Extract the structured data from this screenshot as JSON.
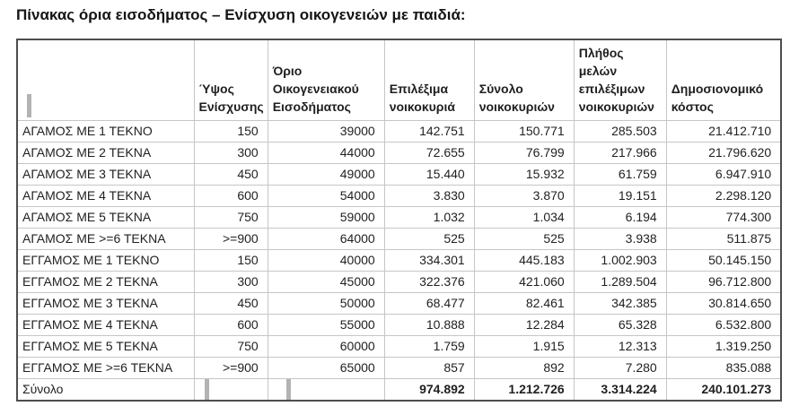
{
  "page": {
    "title": "Πίνακας όρια εισοδήματος – Ενίσχυση οικογενειών με παιδιά:"
  },
  "table": {
    "headers": [
      "",
      "Ύψος Ενίσχυσης",
      "Όριο Οικογενειακού Εισοδήματος",
      "Επιλέξιμα νοικοκυριά",
      "Σύνολο νοικοκυριών",
      "Πλήθος μελών επιλέξιμων νοικοκυριών",
      "Δημοσιονομικό κόστος"
    ],
    "rows": [
      {
        "label": "ΑΓΑΜΟΣ ΜΕ 1 ΤΕΚΝΟ",
        "values": [
          "150",
          "39000",
          "142.751",
          "150.771",
          "285.503",
          "21.412.710"
        ]
      },
      {
        "label": "ΑΓΑΜΟΣ ΜΕ 2 ΤΕΚΝΑ",
        "values": [
          "300",
          "44000",
          "72.655",
          "76.799",
          "217.966",
          "21.796.620"
        ]
      },
      {
        "label": "ΑΓΑΜΟΣ ΜΕ 3 ΤΕΚΝΑ",
        "values": [
          "450",
          "49000",
          "15.440",
          "15.932",
          "61.759",
          "6.947.910"
        ]
      },
      {
        "label": "ΑΓΑΜΟΣ ΜΕ 4 ΤΕΚΝΑ",
        "values": [
          "600",
          "54000",
          "3.830",
          "3.870",
          "19.151",
          "2.298.120"
        ]
      },
      {
        "label": "ΑΓΑΜΟΣ ΜΕ 5 ΤΕΚΝΑ",
        "values": [
          "750",
          "59000",
          "1.032",
          "1.034",
          "6.194",
          "774.300"
        ]
      },
      {
        "label": "ΑΓΑΜΟΣ ΜΕ >=6 ΤΕΚΝΑ",
        "values": [
          ">=900",
          "64000",
          "525",
          "525",
          "3.938",
          "511.875"
        ]
      },
      {
        "label": "ΕΓΓΑΜΟΣ ΜΕ 1 ΤΕΚΝΟ",
        "values": [
          "150",
          "40000",
          "334.301",
          "445.183",
          "1.002.903",
          "50.145.150"
        ]
      },
      {
        "label": "ΕΓΓΑΜΟΣ ΜΕ 2 ΤΕΚΝΑ",
        "values": [
          "300",
          "45000",
          "322.376",
          "421.060",
          "1.289.504",
          "96.712.800"
        ]
      },
      {
        "label": "ΕΓΓΑΜΟΣ ΜΕ 3 ΤΕΚΝΑ",
        "values": [
          "450",
          "50000",
          "68.477",
          "82.461",
          "342.385",
          "30.814.650"
        ]
      },
      {
        "label": "ΕΓΓΑΜΟΣ ΜΕ 4 ΤΕΚΝΑ",
        "values": [
          "600",
          "55000",
          "10.888",
          "12.284",
          "65.328",
          "6.532.800"
        ]
      },
      {
        "label": "ΕΓΓΑΜΟΣ ΜΕ 5 ΤΕΚΝΑ",
        "values": [
          "750",
          "60000",
          "1.759",
          "1.915",
          "12.313",
          "1.319.250"
        ]
      },
      {
        "label": "ΕΓΓΑΜΟΣ ΜΕ >=6 ΤΕΚΝΑ",
        "values": [
          ">=900",
          "65000",
          "857",
          "892",
          "7.280",
          "835.088"
        ]
      }
    ],
    "totals": {
      "label": "Σύνολο",
      "values": [
        "",
        "",
        "974.892",
        "1.212.726",
        "3.314.224",
        "240.101.273"
      ]
    }
  },
  "colors": {
    "outer_border": "#4d4d4d",
    "inner_border": "#c6c6c6",
    "text": "#1f1f1f",
    "artifact_bar": "#b3b3b3"
  }
}
